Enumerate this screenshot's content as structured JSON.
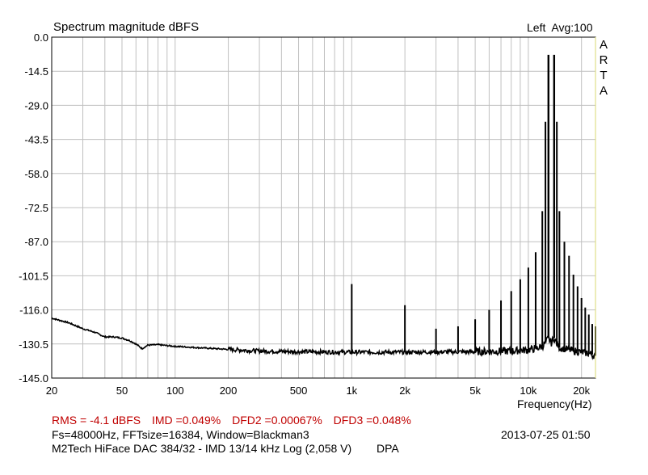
{
  "chart_data": {
    "type": "line",
    "title": "Spectrum magnitude dBFS",
    "channel": "Left",
    "averaging": "Avg:100",
    "brand_letters": [
      "A",
      "R",
      "T",
      "A"
    ],
    "xlabel": "Frequency(Hz)",
    "x_scale": "log",
    "xlim": [
      20,
      24000
    ],
    "ylim": [
      -145.0,
      0.0
    ],
    "grid": true,
    "y_ticks": [
      "0.0",
      "-14.5",
      "-29.0",
      "-43.5",
      "-58.0",
      "-72.5",
      "-87.0",
      "-101.5",
      "-116.0",
      "-130.5",
      "-145.0"
    ],
    "x_ticks": [
      {
        "value": 20,
        "label": "20"
      },
      {
        "value": 50,
        "label": "50"
      },
      {
        "value": 100,
        "label": "100"
      },
      {
        "value": 200,
        "label": "200"
      },
      {
        "value": 500,
        "label": "500"
      },
      {
        "value": 1000,
        "label": "1k"
      },
      {
        "value": 2000,
        "label": "2k"
      },
      {
        "value": 5000,
        "label": "5k"
      },
      {
        "value": 10000,
        "label": "10k"
      },
      {
        "value": 20000,
        "label": "20k"
      }
    ],
    "noise_floor": [
      [
        20,
        -119.5
      ],
      [
        25,
        -121.5
      ],
      [
        30,
        -124.0
      ],
      [
        35,
        -125.5
      ],
      [
        40,
        -127.5
      ],
      [
        45,
        -127.5
      ],
      [
        50,
        -128.0
      ],
      [
        55,
        -129.0
      ],
      [
        60,
        -130.5
      ],
      [
        65,
        -132.5
      ],
      [
        70,
        -131.0
      ],
      [
        80,
        -130.8
      ],
      [
        90,
        -131.2
      ],
      [
        100,
        -131.5
      ],
      [
        130,
        -132.0
      ],
      [
        200,
        -132.8
      ],
      [
        300,
        -133.5
      ],
      [
        500,
        -133.8
      ],
      [
        1000,
        -134.0
      ],
      [
        2000,
        -134.0
      ],
      [
        5000,
        -133.8
      ],
      [
        8000,
        -133.5
      ],
      [
        10000,
        -133.0
      ],
      [
        11000,
        -132.5
      ],
      [
        12000,
        -131.5
      ],
      [
        12500,
        -130.0
      ],
      [
        13000,
        -128.0
      ],
      [
        13500,
        -130.0
      ],
      [
        14000,
        -128.0
      ],
      [
        14500,
        -130.5
      ],
      [
        15000,
        -132.0
      ],
      [
        17000,
        -133.0
      ],
      [
        20000,
        -134.0
      ],
      [
        22000,
        -134.5
      ],
      [
        24000,
        -135.5
      ]
    ],
    "peaks": [
      {
        "freq": 13000,
        "db": -7.5
      },
      {
        "freq": 14000,
        "db": -7.5
      },
      {
        "freq": 12000,
        "db": -74.0
      },
      {
        "freq": 15000,
        "db": -74.0
      },
      {
        "freq": 1000,
        "db": -105.0
      },
      {
        "freq": 2000,
        "db": -114.0
      },
      {
        "freq": 3000,
        "db": -124.0
      },
      {
        "freq": 4000,
        "db": -123.0
      },
      {
        "freq": 5000,
        "db": -120.0
      },
      {
        "freq": 6000,
        "db": -116.0
      },
      {
        "freq": 7000,
        "db": -112.0
      },
      {
        "freq": 8000,
        "db": -108.0
      },
      {
        "freq": 9000,
        "db": -103.0
      },
      {
        "freq": 10000,
        "db": -98.0
      },
      {
        "freq": 11000,
        "db": -91.5
      },
      {
        "freq": 12500,
        "db": -36.0
      },
      {
        "freq": 14500,
        "db": -36.0
      },
      {
        "freq": 16000,
        "db": -87.0
      },
      {
        "freq": 17000,
        "db": -93.0
      },
      {
        "freq": 18000,
        "db": -101.0
      },
      {
        "freq": 19000,
        "db": -106.0
      },
      {
        "freq": 20000,
        "db": -111.0
      },
      {
        "freq": 21000,
        "db": -115.0
      },
      {
        "freq": 22000,
        "db": -118.0
      },
      {
        "freq": 23000,
        "db": -122.0
      },
      {
        "freq": 24000,
        "db": -123.0
      }
    ]
  },
  "stats": {
    "rms": "RMS =   -4.1 dBFS",
    "imd": "IMD =0.049%",
    "dfd2": "DFD2 =0.00067%",
    "dfd3": "DFD3 =0.048%"
  },
  "setup_line": "Fs=48000Hz, FFTsize=16384, Window=Blackman3",
  "timestamp": "2013-07-25  01:50",
  "device_line": "M2Tech HiFace DAC 384/32 - IMD 13/14 kHz Log (2,058 V)",
  "tag": "DPA",
  "colors": {
    "trace": "#000000",
    "grid": "#c0c0c0",
    "frame_accent": "#d8d870",
    "stats_text": "#c00000"
  }
}
